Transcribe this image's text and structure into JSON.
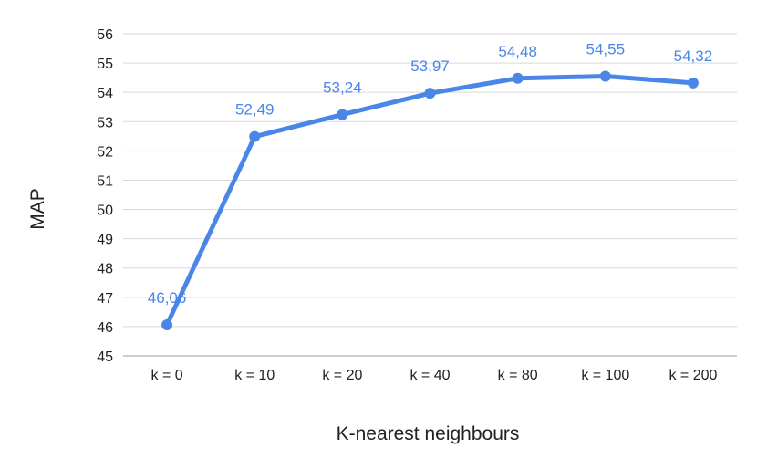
{
  "chart_data": {
    "type": "line",
    "title": "",
    "xlabel": "K-nearest neighbours",
    "ylabel": "MAP",
    "categories": [
      "k = 0",
      "k = 10",
      "k = 20",
      "k = 40",
      "k = 80",
      "k = 100",
      "k = 200"
    ],
    "series": [
      {
        "values": [
          46.06,
          52.49,
          53.24,
          53.97,
          54.48,
          54.55,
          54.32
        ],
        "data_labels": [
          "46,06",
          "52,49",
          "53,24",
          "53,97",
          "54,48",
          "54,55",
          "54,32"
        ],
        "color": "#4a86e8"
      }
    ],
    "ylim": [
      45,
      56
    ],
    "yticks": [
      45,
      46,
      47,
      48,
      49,
      50,
      51,
      52,
      53,
      54,
      55,
      56
    ],
    "grid": true,
    "legend": "none",
    "gridline_color": "#d9d9d9",
    "label_color": "#4a86e8"
  }
}
